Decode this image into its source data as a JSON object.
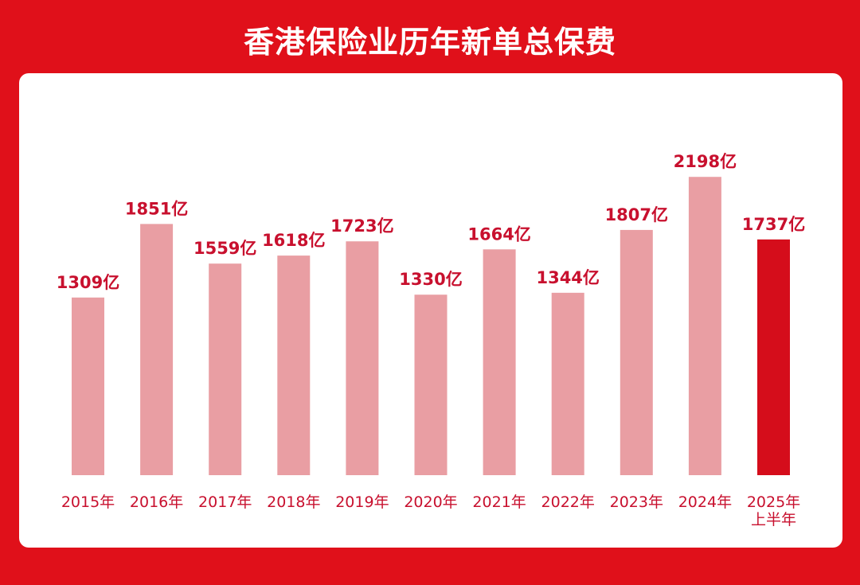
{
  "chart_data": {
    "type": "bar",
    "title": "香港保险业历年新单总保费",
    "categories": [
      [
        "2015年"
      ],
      [
        "2016年"
      ],
      [
        "2017年"
      ],
      [
        "2018年"
      ],
      [
        "2019年"
      ],
      [
        "2020年"
      ],
      [
        "2021年"
      ],
      [
        "2022年"
      ],
      [
        "2023年"
      ],
      [
        "2024年"
      ],
      [
        "2025年",
        "上半年"
      ]
    ],
    "values": [
      1309,
      1851,
      1559,
      1618,
      1723,
      1330,
      1664,
      1344,
      1807,
      2198,
      1737
    ],
    "value_labels": [
      "1309亿",
      "1851亿",
      "1559亿",
      "1618亿",
      "1723亿",
      "1330亿",
      "1664亿",
      "1344亿",
      "1807亿",
      "2198亿",
      "1737亿"
    ],
    "highlight_index": 10,
    "colors": {
      "bar": "#e99ea3",
      "highlight": "#d50d1b",
      "text": "#c8102e",
      "background": "#e0101a",
      "panel": "#ffffff"
    },
    "xlabel": "",
    "ylabel": "",
    "grid": false,
    "legend": "none"
  }
}
